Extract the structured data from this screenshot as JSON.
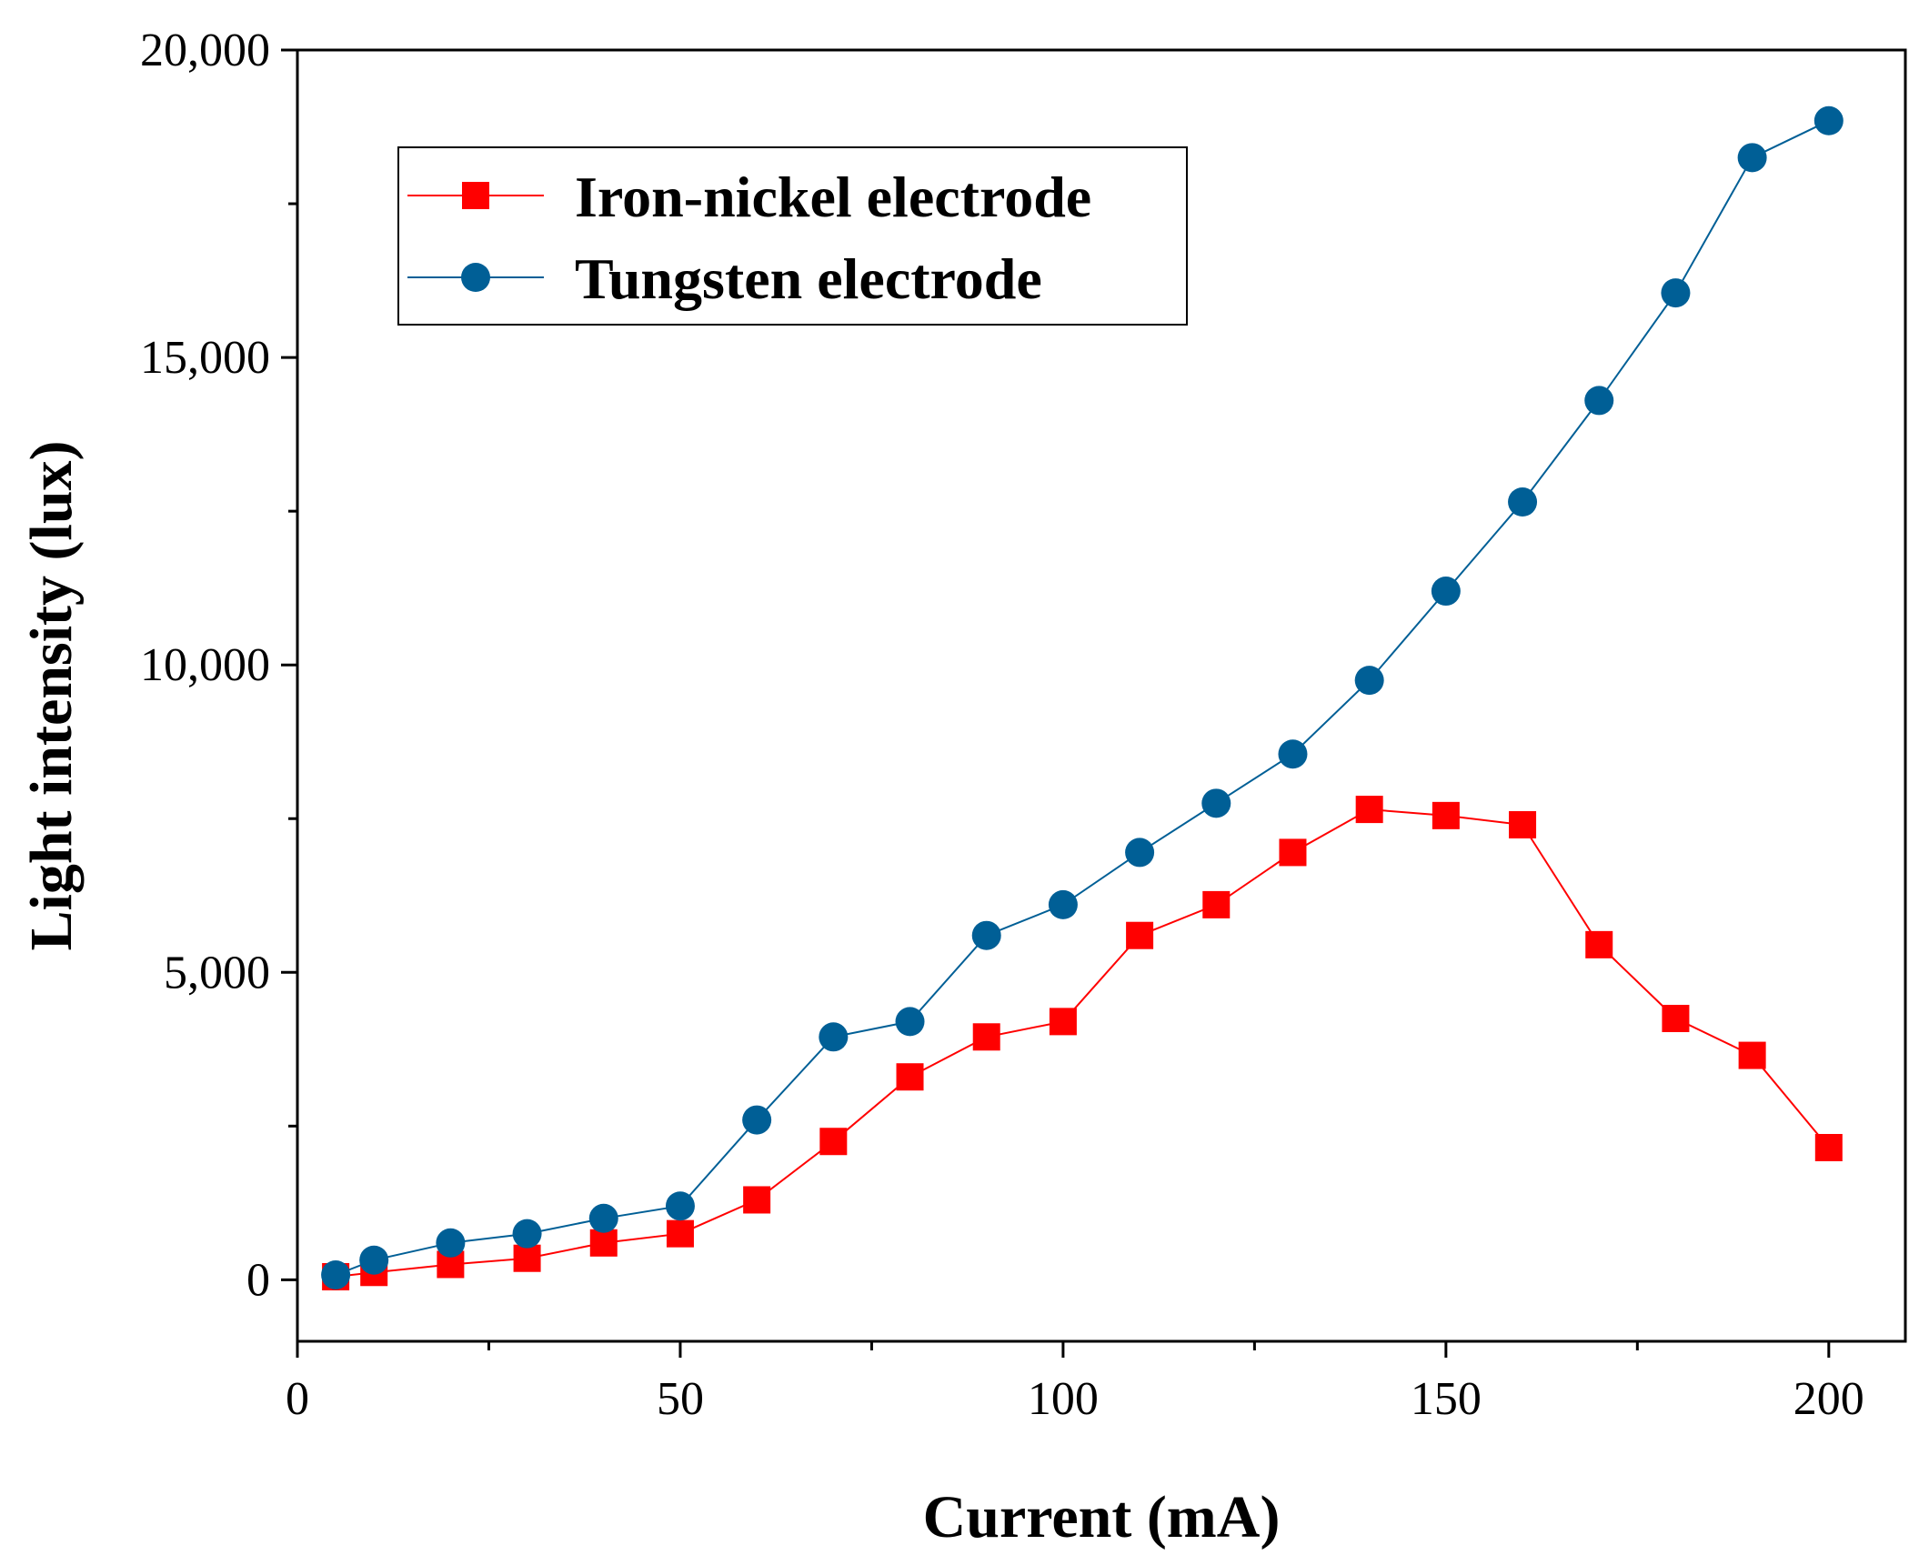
{
  "chart_data": {
    "type": "line",
    "title": "",
    "xlabel": "Current (mA)",
    "ylabel": "Light intensity (lux)",
    "xlim": [
      0,
      210
    ],
    "ylim": [
      -1000,
      20000
    ],
    "x_ticks": [
      0,
      50,
      100,
      150,
      200
    ],
    "x_tick_labels": [
      "0",
      "50",
      "100",
      "150",
      "200"
    ],
    "x_minor_ticks": [
      25,
      75,
      125,
      175
    ],
    "y_ticks": [
      0,
      5000,
      10000,
      15000,
      20000
    ],
    "y_tick_labels": [
      "0",
      "5,000",
      "10,000",
      "15,000",
      "20,000"
    ],
    "y_minor_ticks": [
      2500,
      7500,
      12500,
      17500
    ],
    "grid": false,
    "legend_position": "top-left",
    "series": [
      {
        "name": "Iron-nickel electrode",
        "color": "#ff0000",
        "marker": "square",
        "x": [
          5,
          10,
          20,
          30,
          40,
          50,
          60,
          70,
          80,
          90,
          100,
          110,
          120,
          130,
          140,
          150,
          160,
          170,
          180,
          190,
          200
        ],
        "values": [
          50,
          120,
          250,
          350,
          600,
          750,
          1300,
          2250,
          3300,
          3950,
          4200,
          5600,
          6100,
          6950,
          7650,
          7550,
          7400,
          5450,
          4250,
          3650,
          2150
        ]
      },
      {
        "name": "Tungsten electrode",
        "color": "#005f96",
        "marker": "circle",
        "x": [
          5,
          10,
          20,
          30,
          40,
          50,
          60,
          70,
          80,
          90,
          100,
          110,
          120,
          130,
          140,
          150,
          160,
          170,
          180,
          190,
          200
        ],
        "values": [
          80,
          320,
          600,
          750,
          1000,
          1200,
          2600,
          3950,
          4200,
          5600,
          6100,
          6950,
          7750,
          8550,
          9750,
          11200,
          12650,
          14300,
          16050,
          18250,
          18850
        ]
      }
    ]
  }
}
